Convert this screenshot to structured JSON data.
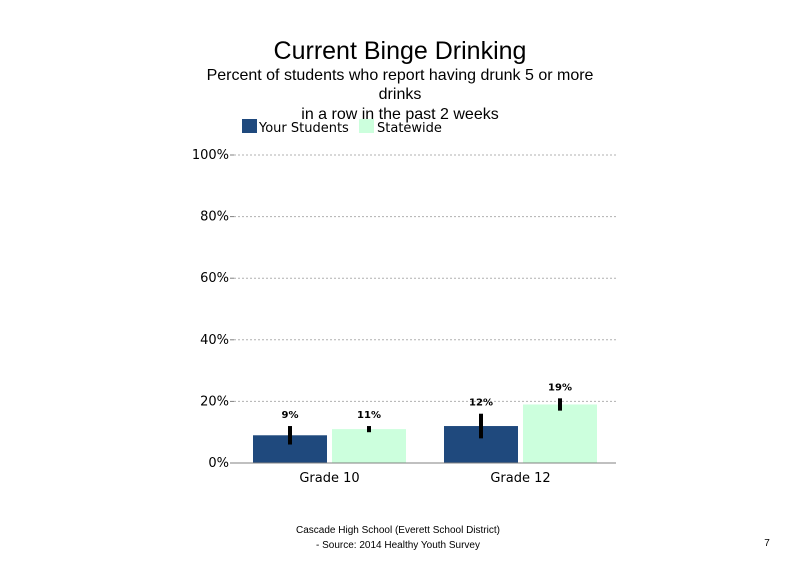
{
  "chart_data": {
    "type": "bar",
    "title": "Current Binge Drinking",
    "subtitle_lines": [
      "Percent of students  who report having drunk 5 or more",
      "drinks",
      "in a row in the past 2 weeks"
    ],
    "categories": [
      "Grade 10",
      "Grade 12"
    ],
    "series": [
      {
        "name": "Your Students",
        "color": "#1f497d",
        "values": [
          9,
          12
        ],
        "labels": [
          "9%",
          "12%"
        ],
        "error_low": [
          6,
          8
        ],
        "error_high": [
          12,
          16
        ]
      },
      {
        "name": "Statewide",
        "color": "#ccffdd",
        "values": [
          11,
          19
        ],
        "labels": [
          "11%",
          "19%"
        ],
        "error_low": [
          10,
          17
        ],
        "error_high": [
          12,
          21
        ]
      }
    ],
    "ylim": [
      0,
      100
    ],
    "y_ticks": [
      0,
      20,
      40,
      60,
      80,
      100
    ],
    "y_tick_labels": [
      "0%",
      "20%",
      "40%",
      "60%",
      "80%",
      "100%"
    ],
    "gridlines": "dotted",
    "legend_position": "top-left"
  },
  "footer": {
    "line1": "Cascade High School (Everett School District)",
    "line2": "- Source: 2014 Healthy  Youth Survey",
    "page_number": "7"
  }
}
